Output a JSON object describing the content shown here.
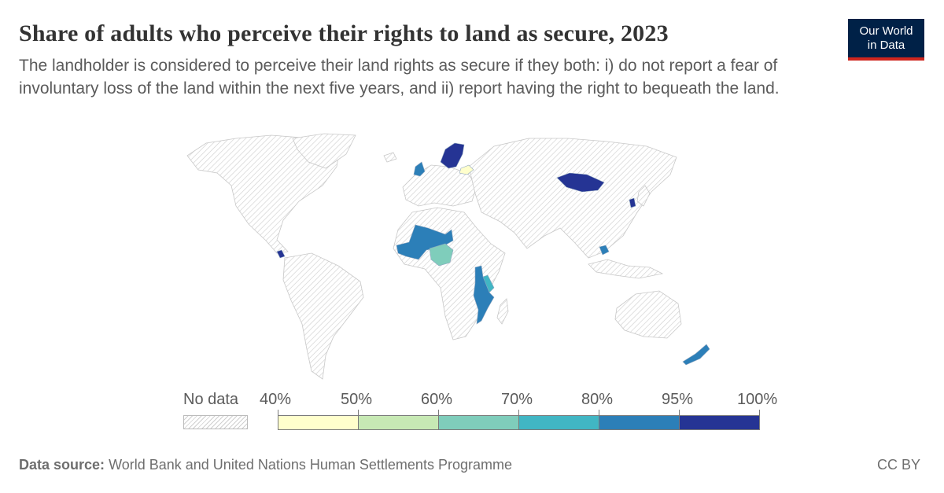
{
  "header": {
    "title": "Share of adults who perceive their rights to land as secure, 2023",
    "subtitle": "The landholder is considered to perceive their land rights as secure if they both: i) do not report a fear of involuntary loss of the land within the next five years, and ii) report having the right to bequeath the land."
  },
  "logo": {
    "line1": "Our World",
    "line2": "in Data",
    "background": "#002147",
    "accent": "#ce261e"
  },
  "legend": {
    "no_data_label": "No data",
    "ticks": [
      "40%",
      "50%",
      "60%",
      "70%",
      "80%",
      "95%",
      "100%"
    ],
    "bins": [
      {
        "from": 40,
        "to": 50,
        "color": "#ffffcc"
      },
      {
        "from": 50,
        "to": 60,
        "color": "#c7e9b4"
      },
      {
        "from": 60,
        "to": 70,
        "color": "#7fcdbb"
      },
      {
        "from": 70,
        "to": 80,
        "color": "#41b6c4"
      },
      {
        "from": 80,
        "to": 95,
        "color": "#2c7fb8"
      },
      {
        "from": 95,
        "to": 100,
        "color": "#253494"
      }
    ]
  },
  "countries": [
    {
      "name": "Mongolia",
      "bin": 5
    },
    {
      "name": "Norway",
      "bin": 5
    },
    {
      "name": "Sweden",
      "bin": 5
    },
    {
      "name": "Finland",
      "bin": 5
    },
    {
      "name": "Costa Rica",
      "bin": 5
    },
    {
      "name": "South Korea",
      "bin": 5
    },
    {
      "name": "United Kingdom",
      "bin": 4
    },
    {
      "name": "Mali",
      "bin": 4
    },
    {
      "name": "Senegal",
      "bin": 4
    },
    {
      "name": "Mozambique",
      "bin": 4
    },
    {
      "name": "Cambodia",
      "bin": 4
    },
    {
      "name": "New Zealand",
      "bin": 4
    },
    {
      "name": "Belarus",
      "bin": 0
    },
    {
      "name": "Nigeria",
      "bin": 2
    },
    {
      "name": "Kenya",
      "bin": 3
    },
    {
      "name": "Malawi",
      "bin": 3
    }
  ],
  "footer": {
    "source_label": "Data source:",
    "source_text": "World Bank and United Nations Human Settlements Programme",
    "license": "CC BY"
  }
}
